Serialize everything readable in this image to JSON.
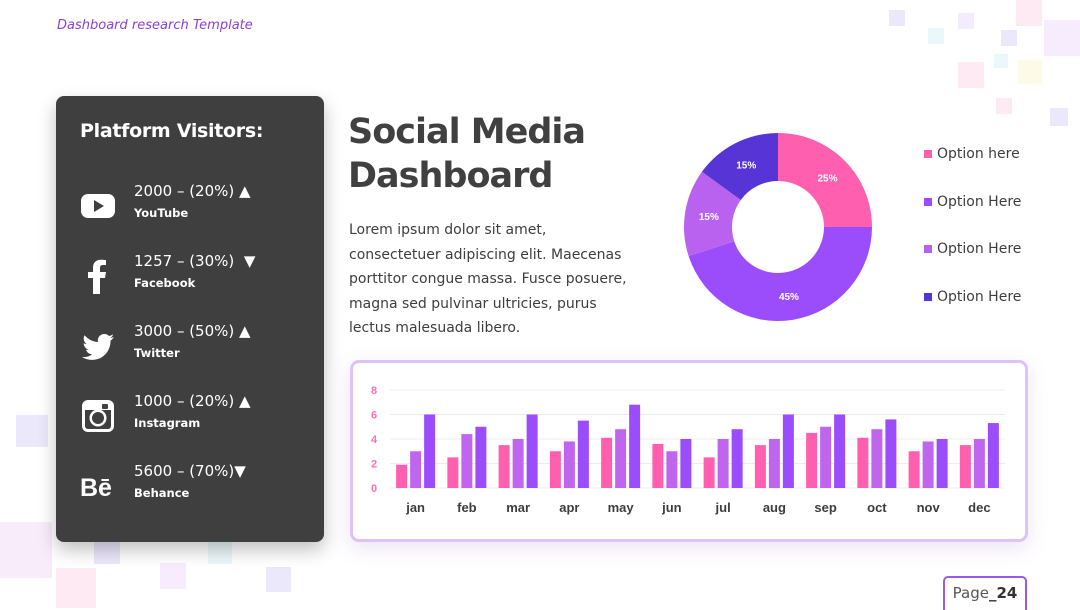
{
  "header": {
    "tag": "Dashboard research Template"
  },
  "visitors": {
    "title": "Platform Visitors:",
    "platforms": [
      {
        "icon": "youtube-icon",
        "stat": "2000 – (20%)",
        "trend": "▲",
        "name": "YouTube"
      },
      {
        "icon": "facebook-icon",
        "stat": "1257 – (30%)",
        "trend": "▼",
        "name": "Facebook"
      },
      {
        "icon": "twitter-icon",
        "stat": "3000 – (50%)",
        "trend": "▲",
        "name": "Twitter"
      },
      {
        "icon": "instagram-icon",
        "stat": "1000 – (20%)",
        "trend": "▲",
        "name": "Instagram"
      },
      {
        "icon": "behance-icon",
        "stat": "5600 – (70%)",
        "trend": "▼",
        "name": "Behance"
      }
    ]
  },
  "main": {
    "title_line1": "Social Media",
    "title_line2": "Dashboard",
    "body": "Lorem ipsum dolor sit amet, consectetuer adipiscing elit. Maecenas porttitor congue massa. Fusce posuere, magna sed pulvinar ultricies, purus lectus malesuada libero."
  },
  "legend": [
    {
      "label": "Option here",
      "color": "#ff5fae"
    },
    {
      "label": "Option Here",
      "color": "#9c4dfb"
    },
    {
      "label": "Option Here",
      "color": "#b962f0"
    },
    {
      "label": "Option Here",
      "color": "#5634d6"
    }
  ],
  "page": {
    "label": "Page",
    "number": "_24"
  },
  "colors": {
    "card_bg": "#3f3f3f",
    "accent": "#8a3fd6",
    "pink": "#ff5fae",
    "purple": "#9c4dfb",
    "violet": "#b962f0",
    "indigo": "#5634d6"
  },
  "chart_data": [
    {
      "type": "pie",
      "variant": "donut",
      "slices": [
        {
          "label": "25%",
          "value": 25,
          "color": "#ff5fae"
        },
        {
          "label": "45%",
          "value": 45,
          "color": "#9c4dfb"
        },
        {
          "label": "15%",
          "value": 15,
          "color": "#b962f0"
        },
        {
          "label": "15%",
          "value": 15,
          "color": "#5634d6"
        }
      ]
    },
    {
      "type": "bar",
      "categories": [
        "jan",
        "feb",
        "mar",
        "apr",
        "may",
        "jun",
        "jul",
        "aug",
        "sep",
        "oct",
        "nov",
        "dec"
      ],
      "series": [
        {
          "values": [
            1.9,
            2.5,
            3.5,
            3.0,
            4.1,
            3.6,
            2.5,
            3.5,
            4.5,
            4.1,
            3.0,
            3.5
          ],
          "color": "#ff5fae"
        },
        {
          "values": [
            3.0,
            4.4,
            4.0,
            3.8,
            4.8,
            3.0,
            4.0,
            4.0,
            5.0,
            4.8,
            3.8,
            4.0
          ],
          "color": "#c066ee"
        },
        {
          "values": [
            6.0,
            5.0,
            6.0,
            5.5,
            6.8,
            4.0,
            4.8,
            6.0,
            6.0,
            5.6,
            4.0,
            5.3
          ],
          "color": "#9c4dfb"
        }
      ],
      "yticks": [
        "0",
        "2",
        "4",
        "6",
        "8"
      ],
      "ylim": [
        0,
        8
      ],
      "grid": true
    }
  ]
}
